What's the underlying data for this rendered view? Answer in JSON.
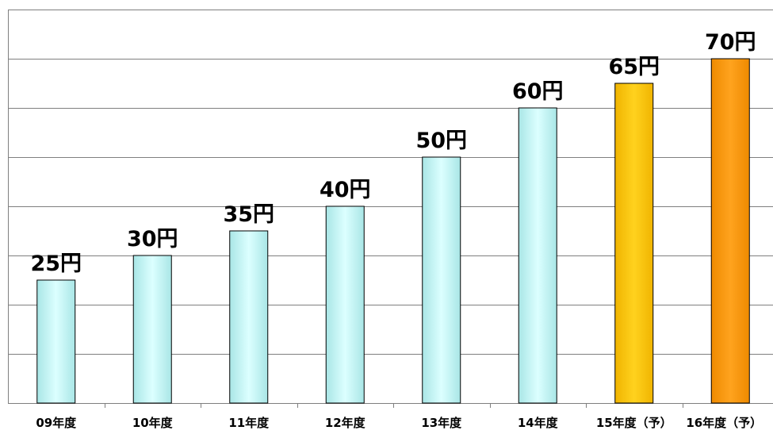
{
  "chart_data": {
    "type": "bar",
    "categories": [
      "09年度",
      "10年度",
      "11年度",
      "12年度",
      "13年度",
      "14年度",
      "15年度（予）",
      "16年度（予）"
    ],
    "values": [
      25,
      30,
      35,
      40,
      50,
      60,
      65,
      70
    ],
    "data_labels": [
      "25円",
      "30円",
      "35円",
      "40円",
      "50円",
      "60円",
      "65円",
      "70円"
    ],
    "bar_colors": [
      "#c8fafa",
      "#c8fafa",
      "#c8fafa",
      "#c8fafa",
      "#c8fafa",
      "#c8fafa",
      "#ffc800",
      "#ff9600"
    ],
    "ylim": [
      0,
      80
    ],
    "grid": true,
    "title": "",
    "xlabel": "",
    "ylabel": ""
  }
}
